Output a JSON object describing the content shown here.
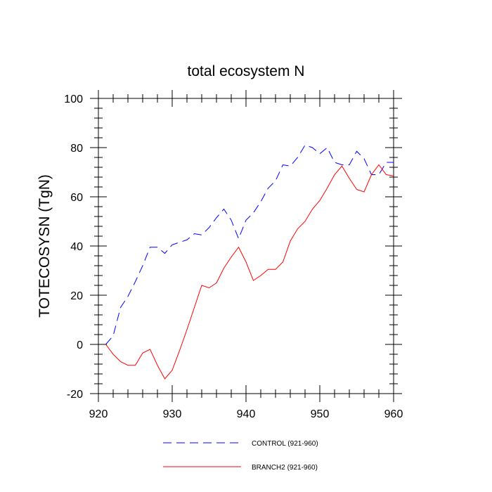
{
  "chart_data": {
    "type": "line",
    "title": "total ecosystem N",
    "xlabel": "",
    "ylabel": "TOTECOSYSN  (TgN)",
    "xlim": [
      920,
      960
    ],
    "ylim": [
      -20,
      100
    ],
    "xticks": [
      920,
      930,
      940,
      950,
      960
    ],
    "yticks": [
      -20,
      0,
      20,
      40,
      60,
      80,
      100
    ],
    "legend_position": "bottom",
    "x": [
      921,
      922,
      923,
      924,
      925,
      926,
      927,
      928,
      929,
      930,
      931,
      932,
      933,
      934,
      935,
      936,
      937,
      938,
      939,
      940,
      941,
      942,
      943,
      944,
      945,
      946,
      947,
      948,
      949,
      950,
      951,
      952,
      953,
      954,
      955,
      956,
      957,
      958,
      959,
      960
    ],
    "series": [
      {
        "name": "CONTROL (921-960)",
        "color": "#0000ff",
        "dash": "dashed",
        "values": [
          0,
          3.5,
          15,
          19.5,
          25.5,
          32,
          39.5,
          39.5,
          37,
          40.5,
          41.5,
          42.5,
          45,
          44.5,
          47.5,
          51.5,
          55,
          50.5,
          43,
          50.5,
          53.5,
          58,
          63.5,
          66.5,
          73,
          72.5,
          76,
          81,
          80,
          77.5,
          80,
          74,
          73,
          73,
          78.5,
          75.5,
          69,
          69,
          74,
          74
        ]
      },
      {
        "name": "BRANCH2 (921-960)",
        "color": "#ff0000",
        "dash": "solid",
        "values": [
          0,
          -4,
          -7,
          -8.5,
          -8.5,
          -3.5,
          -2,
          -8.5,
          -14,
          -10.5,
          -2.5,
          6,
          15,
          24,
          23,
          25,
          31,
          35.5,
          39.5,
          33.5,
          26,
          28,
          30.5,
          30.5,
          33.5,
          42,
          47,
          50,
          55,
          58.5,
          63.5,
          69,
          72.5,
          67.5,
          63,
          62,
          69,
          73,
          69,
          68.5
        ]
      }
    ]
  }
}
